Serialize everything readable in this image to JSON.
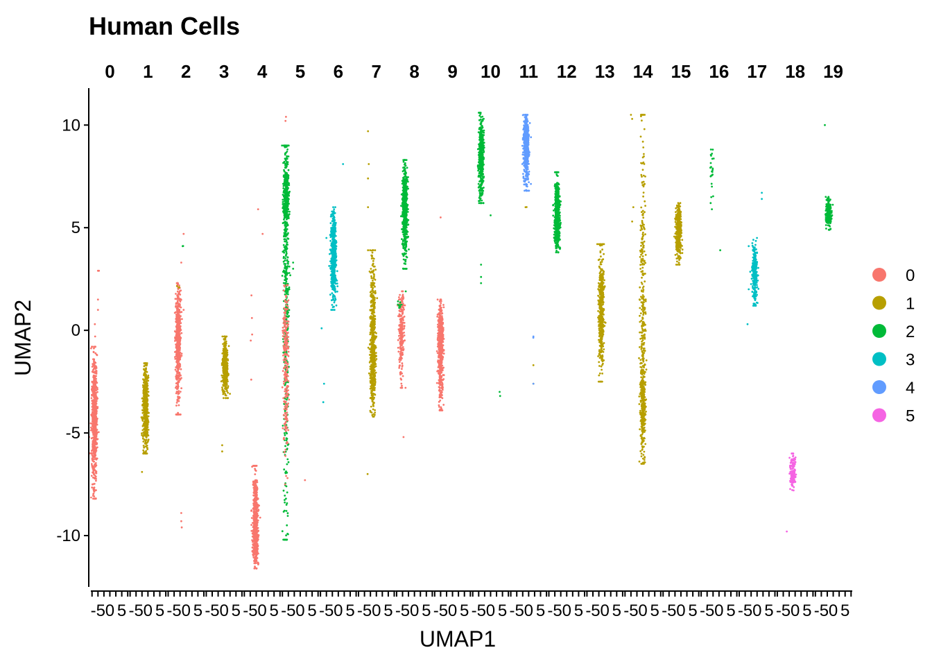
{
  "chart_data": {
    "type": "scatter",
    "title": "Human Cells",
    "xlabel": "UMAP1",
    "ylabel": "UMAP2",
    "ylim": [
      -12.5,
      11.8
    ],
    "y_ticks": [
      10,
      5,
      0,
      -5,
      -10
    ],
    "y_tick_labels": [
      "10",
      "5",
      "0",
      "-5",
      "-10"
    ],
    "x_tick_values": [
      -5,
      0,
      5
    ],
    "x_tick_labels": [
      "-5",
      "0",
      "5"
    ],
    "facets": [
      "0",
      "1",
      "2",
      "3",
      "4",
      "5",
      "6",
      "7",
      "8",
      "9",
      "10",
      "11",
      "12",
      "13",
      "14",
      "15",
      "16",
      "17",
      "18",
      "19"
    ],
    "legend": {
      "position": "right",
      "entries": [
        {
          "label": "0",
          "color": "#F8766D"
        },
        {
          "label": "1",
          "color": "#B79F00"
        },
        {
          "label": "2",
          "color": "#00BA38"
        },
        {
          "label": "3",
          "color": "#00BFC4"
        },
        {
          "label": "4",
          "color": "#619CFF"
        },
        {
          "label": "5",
          "color": "#F564E3"
        }
      ]
    },
    "series": [
      {
        "facet": "0",
        "group": "0",
        "x_center": -6.5,
        "y_range": [
          -8.2,
          -0.8
        ],
        "y_center": -4.2,
        "n": 700,
        "outliers": [
          [
            -6.3,
            0.3
          ],
          [
            -6.2,
            -0.3
          ],
          [
            -5.0,
            1.0
          ],
          [
            -5.0,
            1.5
          ],
          [
            -5.0,
            2.9
          ],
          [
            -4.6,
            2.9
          ]
        ]
      },
      {
        "facet": "1",
        "group": "1",
        "x_center": -1.0,
        "y_range": [
          -6.0,
          -1.6
        ],
        "y_center": -3.8,
        "n": 500,
        "outliers": [
          [
            -2.5,
            -6.9
          ],
          [
            -1.0,
            -1.7
          ],
          [
            0.2,
            -2.3
          ]
        ]
      },
      {
        "facet": "2",
        "group": "0",
        "x_center": -3.3,
        "y_range": [
          -4.1,
          2.3
        ],
        "y_center": -0.5,
        "n": 550,
        "outliers": [
          [
            -2.0,
            -8.9
          ],
          [
            -2.0,
            -9.3
          ],
          [
            -1.8,
            -9.6
          ],
          [
            -1.0,
            4.7
          ],
          [
            -1.0,
            1.0
          ],
          [
            -2.0,
            3.3
          ]
        ]
      },
      {
        "facet": "2",
        "group": "1",
        "x_center": -3.3,
        "y_range": [
          2.0,
          2.2
        ],
        "y_center": 2.1,
        "n": 3,
        "outliers": []
      },
      {
        "facet": "2",
        "group": "2",
        "x_center": -1.4,
        "y_range": [
          4.0,
          4.2
        ],
        "y_center": 4.1,
        "n": 1,
        "outliers": [
          [
            -1.4,
            4.1
          ]
        ]
      },
      {
        "facet": "3",
        "group": "1",
        "x_center": 0.5,
        "y_range": [
          -3.3,
          -0.3
        ],
        "y_center": -1.8,
        "n": 400,
        "outliers": [
          [
            -0.8,
            -5.6
          ],
          [
            -0.8,
            -5.9
          ]
        ]
      },
      {
        "facet": "4",
        "group": "0",
        "x_center": -2.8,
        "y_range": [
          -11.6,
          -6.6
        ],
        "y_center": -9.6,
        "n": 650,
        "outliers": [
          [
            -4.5,
            1.7
          ],
          [
            -4.3,
            0.6
          ],
          [
            -4.2,
            -0.2
          ],
          [
            -4.6,
            -2.4
          ],
          [
            -1.7,
            5.9
          ],
          [
            0.2,
            4.7
          ],
          [
            -4.8,
            -0.5
          ]
        ]
      },
      {
        "facet": "5",
        "group": "2",
        "x_center": -6.0,
        "y_range": [
          -10.2,
          9.0
        ],
        "y_center": 5.5,
        "n": 800,
        "outliers": [
          [
            -6.0,
            -8.2
          ],
          [
            -5.8,
            -8.8
          ],
          [
            -5.6,
            -9.5
          ],
          [
            -5.8,
            -10.2
          ],
          [
            -3.0,
            3.0
          ],
          [
            -3.0,
            3.3
          ]
        ]
      },
      {
        "facet": "5",
        "group": "0",
        "x_center": -6.0,
        "y_range": [
          -7.5,
          2.2
        ],
        "y_center": -1.0,
        "n": 250,
        "outliers": [
          [
            -6.0,
            10.4
          ],
          [
            -6.2,
            10.2
          ],
          [
            2.0,
            -7.3
          ]
        ]
      },
      {
        "facet": "6",
        "group": "3",
        "x_center": -2.0,
        "y_range": [
          1.0,
          6.0
        ],
        "y_center": 3.5,
        "n": 550,
        "outliers": [
          [
            -7.0,
            0.1
          ],
          [
            -6.0,
            -2.6
          ],
          [
            -6.3,
            -3.5
          ],
          [
            2.0,
            8.1
          ],
          [
            -5.0,
            4.5
          ]
        ]
      },
      {
        "facet": "7",
        "group": "1",
        "x_center": -1.5,
        "y_range": [
          -4.2,
          3.9
        ],
        "y_center": -1.0,
        "n": 700,
        "outliers": [
          [
            -3.5,
            9.7
          ],
          [
            -3.2,
            8.1
          ],
          [
            -3.5,
            7.4
          ],
          [
            -3.5,
            6.0
          ],
          [
            -3.7,
            -7.0
          ],
          [
            -3.5,
            3.9
          ]
        ]
      },
      {
        "facet": "8",
        "group": "2",
        "x_center": -4.0,
        "y_range": [
          3.0,
          8.3
        ],
        "y_center": 6.0,
        "n": 550,
        "outliers": []
      },
      {
        "facet": "8",
        "group": "0",
        "x_center": -5.5,
        "y_range": [
          -2.8,
          1.9
        ],
        "y_center": 0.0,
        "n": 250,
        "outliers": [
          [
            -4.6,
            -5.2
          ]
        ]
      },
      {
        "facet": "8",
        "group": "2",
        "x_center": -6.0,
        "y_range": [
          0.8,
          2.0
        ],
        "y_center": 1.4,
        "n": 10,
        "outliers": []
      },
      {
        "facet": "9",
        "group": "0",
        "x_center": -5.0,
        "y_range": [
          -3.9,
          1.5
        ],
        "y_center": -0.8,
        "n": 550,
        "outliers": [
          [
            -5.0,
            5.5
          ]
        ]
      },
      {
        "facet": "10",
        "group": "2",
        "x_center": -4.0,
        "y_range": [
          6.2,
          10.6
        ],
        "y_center": 8.3,
        "n": 450,
        "outliers": [
          [
            -4.0,
            3.2
          ],
          [
            -4.0,
            2.6
          ],
          [
            -4.0,
            2.3
          ],
          [
            0.0,
            5.6
          ],
          [
            3.8,
            -3.0
          ],
          [
            4.0,
            -3.2
          ]
        ]
      },
      {
        "facet": "11",
        "group": "4",
        "x_center": -1.0,
        "y_range": [
          6.8,
          10.5
        ],
        "y_center": 9.2,
        "n": 600,
        "outliers": [
          [
            -1.0,
            6.8
          ]
        ]
      },
      {
        "facet": "11",
        "group": "1",
        "x_center": -1.0,
        "y_range": [
          6.0,
          6.1
        ],
        "y_center": 6.0,
        "n": 1,
        "outliers": [
          [
            -1.3,
            6.0
          ],
          [
            2.0,
            -1.7
          ],
          [
            2.0,
            -2.6
          ]
        ]
      },
      {
        "facet": "11",
        "group": "4",
        "x_center": 2.0,
        "y_range": [
          -0.4,
          -0.3
        ],
        "y_center": -0.35,
        "n": 1,
        "outliers": [
          [
            2.0,
            -0.3
          ],
          [
            2.0,
            -2.6
          ]
        ]
      },
      {
        "facet": "12",
        "group": "2",
        "x_center": -4.0,
        "y_range": [
          3.8,
          7.7
        ],
        "y_center": 5.5,
        "n": 550,
        "outliers": []
      },
      {
        "facet": "13",
        "group": "1",
        "x_center": -1.5,
        "y_range": [
          -2.5,
          4.2
        ],
        "y_center": 1.0,
        "n": 450,
        "outliers": [
          [
            -2.0,
            -2.1
          ],
          [
            -2.0,
            -2.5
          ]
        ]
      },
      {
        "facet": "14",
        "group": "1",
        "x_center": 0.0,
        "y_range": [
          -6.5,
          10.5
        ],
        "y_center": -2.5,
        "n": 600,
        "outliers": [
          [
            -5.0,
            10.5
          ],
          [
            -4.5,
            10.3
          ],
          [
            -4.0,
            6.0
          ],
          [
            -4.5,
            5.3
          ],
          [
            0.0,
            -6.5
          ]
        ]
      },
      {
        "facet": "15",
        "group": "1",
        "x_center": -1.0,
        "y_range": [
          3.2,
          6.2
        ],
        "y_center": 4.8,
        "n": 450,
        "outliers": []
      },
      {
        "facet": "16",
        "group": "2",
        "x_center": -3.0,
        "y_range": [
          5.9,
          9.4
        ],
        "y_center": 8.3,
        "n": 20,
        "outliers": [
          [
            -3.5,
            7.5
          ],
          [
            -3.0,
            7.0
          ],
          [
            -3.5,
            6.2
          ],
          [
            -3.0,
            5.9
          ],
          [
            0.5,
            3.9
          ]
        ]
      },
      {
        "facet": "17",
        "group": "3",
        "x_center": -1.0,
        "y_range": [
          1.2,
          4.5
        ],
        "y_center": 2.8,
        "n": 250,
        "outliers": [
          [
            -4.0,
            0.3
          ],
          [
            -3.5,
            2.0
          ],
          [
            -3.5,
            4.1
          ],
          [
            2.0,
            6.7
          ],
          [
            2.0,
            6.4
          ]
        ]
      },
      {
        "facet": "18",
        "group": "5",
        "x_center": -1.0,
        "y_range": [
          -7.8,
          -6.0
        ],
        "y_center": -7.0,
        "n": 150,
        "outliers": [
          [
            -3.5,
            -9.8
          ]
        ]
      },
      {
        "facet": "19",
        "group": "2",
        "x_center": -2.0,
        "y_range": [
          4.9,
          6.5
        ],
        "y_center": 5.7,
        "n": 250,
        "outliers": [
          [
            -3.5,
            10.0
          ]
        ]
      }
    ]
  }
}
